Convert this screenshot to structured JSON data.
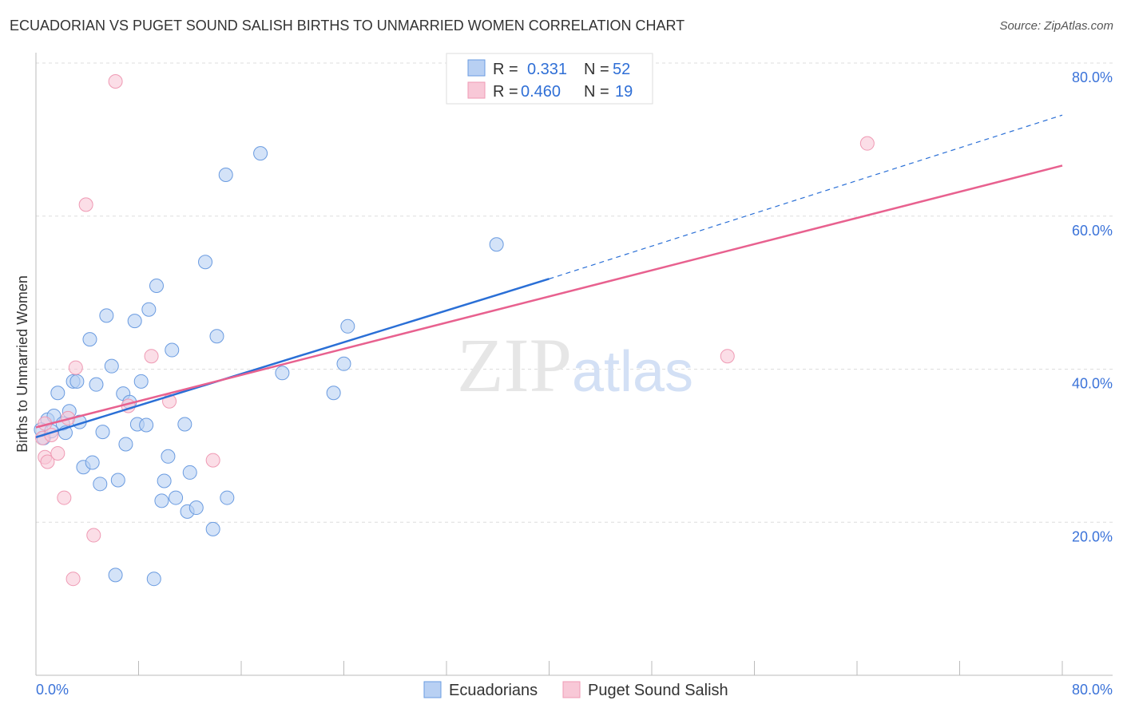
{
  "chart_data": {
    "type": "scatter",
    "title": "ECUADORIAN VS PUGET SOUND SALISH BIRTHS TO UNMARRIED WOMEN CORRELATION CHART",
    "source": "Source: ZipAtlas.com",
    "xlabel": "",
    "ylabel": "Births to Unmarried Women",
    "xlim": [
      0,
      80
    ],
    "ylim": [
      0,
      80
    ],
    "x_tick_labels": [
      "0.0%",
      "80.0%"
    ],
    "y_ticks": [
      20,
      40,
      60,
      80
    ],
    "y_tick_labels": [
      "20.0%",
      "40.0%",
      "60.0%",
      "80.0%"
    ],
    "grid": true,
    "watermark": "ZIPatlas",
    "legend_stats": [
      {
        "r_label": "R =",
        "r": "0.331",
        "n_label": "N =",
        "n": "52"
      },
      {
        "r_label": "R =",
        "r": "0.460",
        "n_label": "N =",
        "n": "19"
      }
    ],
    "series": [
      {
        "name": "Ecuadorians",
        "color": "#6a9be0",
        "fill": "#b8d0f3",
        "line_color": "#2a6fd6",
        "trend": {
          "x0": 0,
          "y0": 31.1,
          "x1": 40,
          "y1": 51.8,
          "dash_to_x": 80,
          "dash_to_y": 73.2
        },
        "points": [
          [
            0.6,
            31.0
          ],
          [
            0.9,
            33.4
          ],
          [
            0.4,
            32.1
          ],
          [
            1.2,
            31.9
          ],
          [
            1.4,
            33.9
          ],
          [
            1.7,
            36.9
          ],
          [
            2.1,
            32.9
          ],
          [
            2.3,
            31.7
          ],
          [
            2.6,
            34.5
          ],
          [
            2.9,
            38.4
          ],
          [
            3.2,
            38.4
          ],
          [
            3.4,
            33.1
          ],
          [
            3.7,
            27.2
          ],
          [
            4.2,
            43.9
          ],
          [
            4.4,
            27.8
          ],
          [
            4.7,
            38.0
          ],
          [
            5.0,
            25.0
          ],
          [
            5.2,
            31.8
          ],
          [
            5.5,
            47.0
          ],
          [
            5.9,
            40.4
          ],
          [
            6.2,
            13.1
          ],
          [
            6.4,
            25.5
          ],
          [
            6.8,
            36.8
          ],
          [
            7.0,
            30.2
          ],
          [
            7.3,
            35.7
          ],
          [
            7.7,
            46.3
          ],
          [
            7.9,
            32.8
          ],
          [
            8.2,
            38.4
          ],
          [
            8.6,
            32.7
          ],
          [
            8.8,
            47.8
          ],
          [
            9.2,
            12.6
          ],
          [
            9.4,
            50.9
          ],
          [
            9.8,
            22.8
          ],
          [
            10.0,
            25.4
          ],
          [
            10.3,
            28.6
          ],
          [
            10.6,
            42.5
          ],
          [
            10.9,
            23.2
          ],
          [
            11.6,
            32.8
          ],
          [
            11.8,
            21.4
          ],
          [
            12.0,
            26.5
          ],
          [
            12.5,
            21.9
          ],
          [
            13.2,
            54.0
          ],
          [
            13.8,
            19.1
          ],
          [
            14.1,
            44.3
          ],
          [
            14.8,
            65.4
          ],
          [
            14.9,
            23.2
          ],
          [
            17.5,
            68.2
          ],
          [
            19.2,
            39.5
          ],
          [
            23.2,
            36.9
          ],
          [
            24.0,
            40.7
          ],
          [
            24.3,
            45.6
          ],
          [
            35.9,
            56.3
          ]
        ]
      },
      {
        "name": "Puget Sound Salish",
        "color": "#ef9ab4",
        "fill": "#f8c8d7",
        "line_color": "#e8618f",
        "trend": {
          "x0": 0,
          "y0": 32.4,
          "x1": 80,
          "y1": 66.6
        },
        "points": [
          [
            6.2,
            77.6
          ],
          [
            3.9,
            61.5
          ],
          [
            0.5,
            31.0
          ],
          [
            0.7,
            28.5
          ],
          [
            0.9,
            27.9
          ],
          [
            1.2,
            31.4
          ],
          [
            1.7,
            29.0
          ],
          [
            2.2,
            23.2
          ],
          [
            2.5,
            33.6
          ],
          [
            2.9,
            12.6
          ],
          [
            3.1,
            40.2
          ],
          [
            4.5,
            18.3
          ],
          [
            7.2,
            35.2
          ],
          [
            9.0,
            41.7
          ],
          [
            10.4,
            35.8
          ],
          [
            13.8,
            28.1
          ],
          [
            53.9,
            41.7
          ],
          [
            64.8,
            69.5
          ],
          [
            0.7,
            32.9
          ]
        ]
      }
    ]
  }
}
